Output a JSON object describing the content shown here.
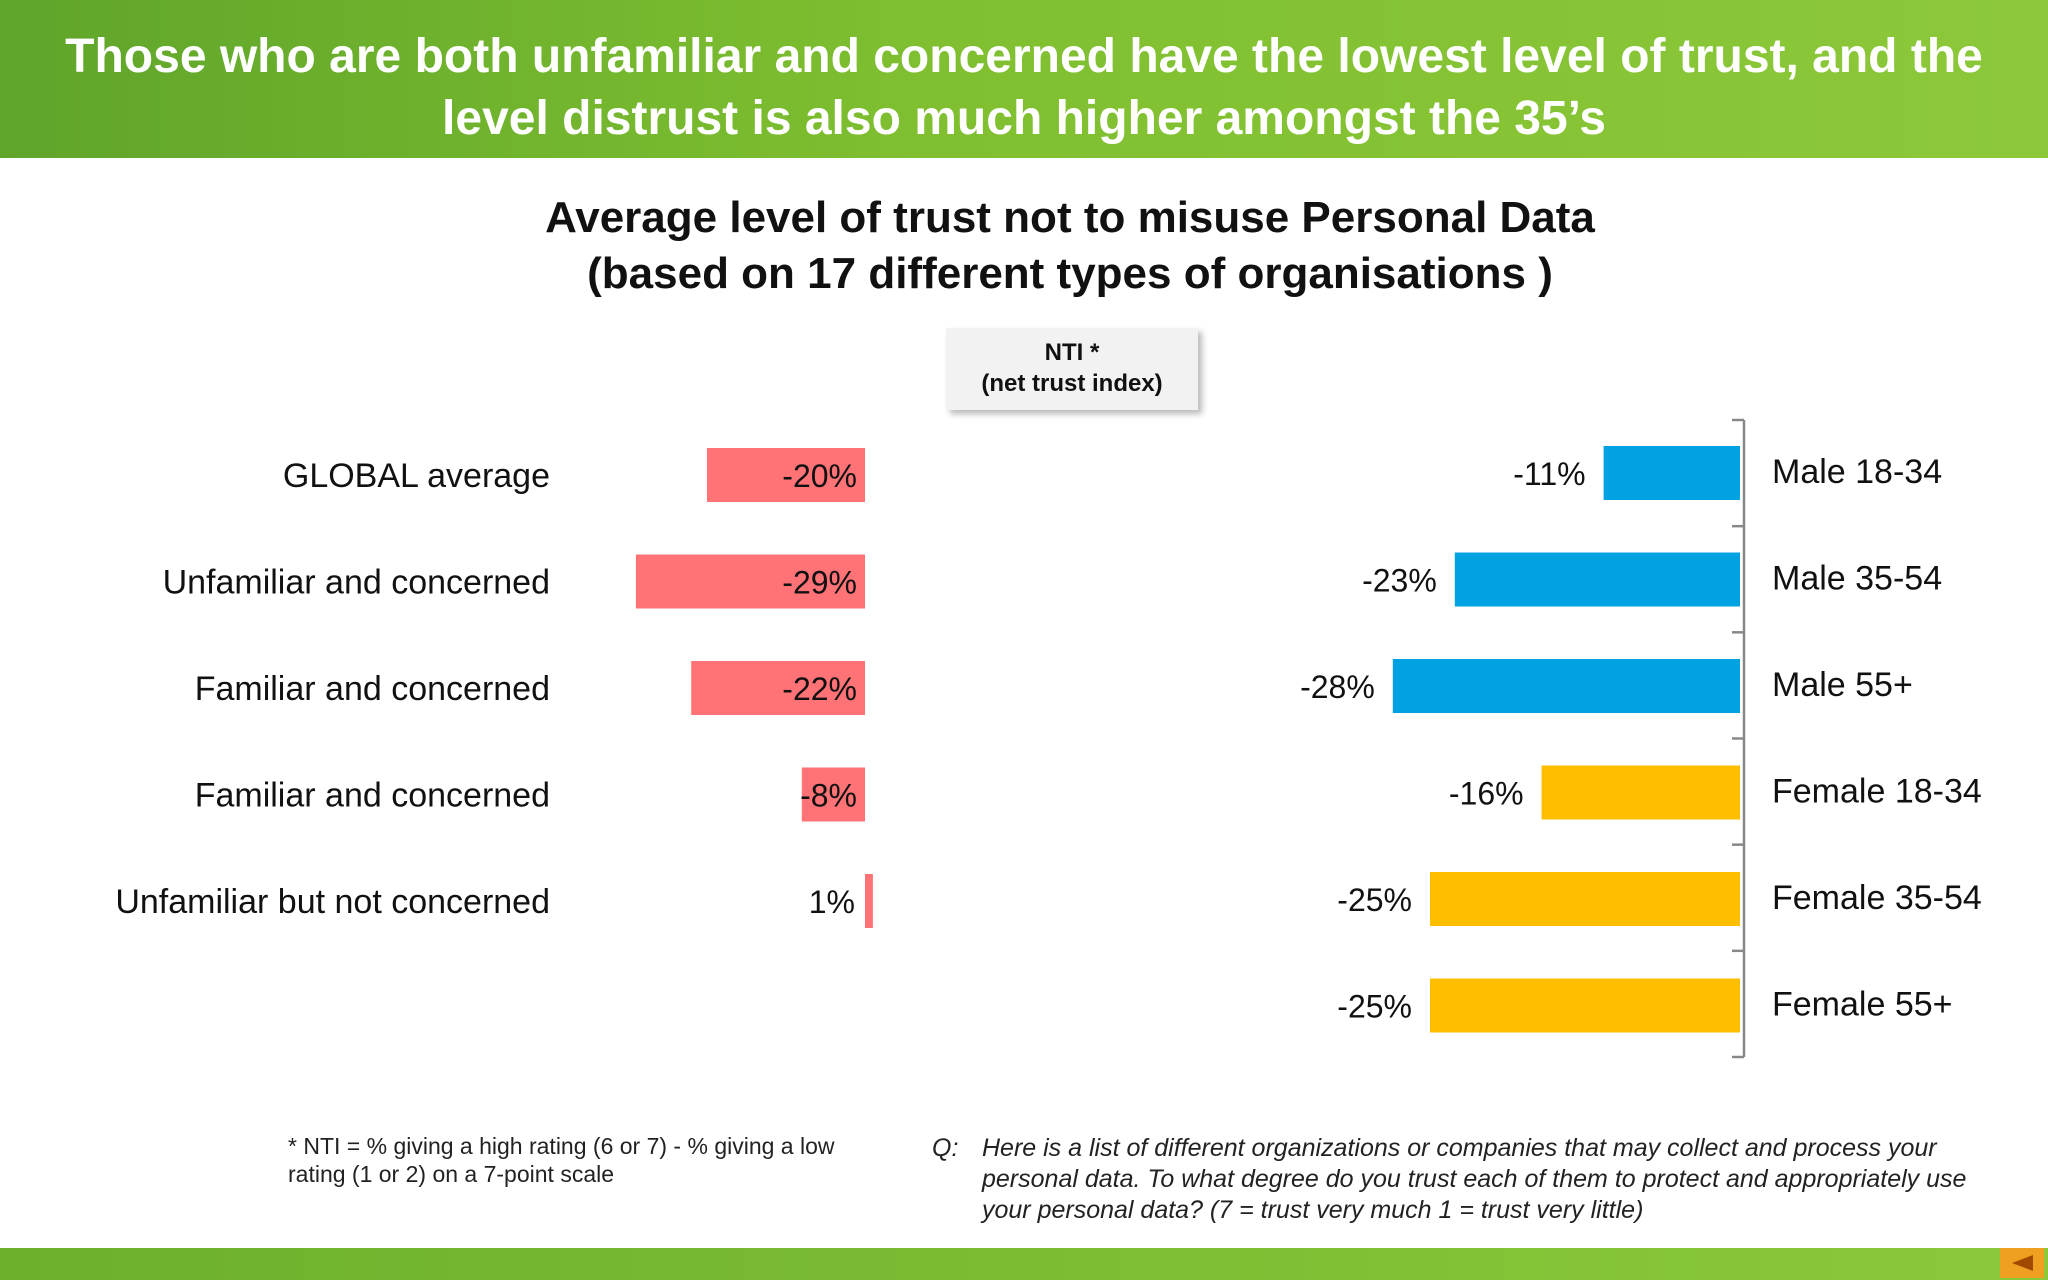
{
  "header": {
    "title": "Those who are both unfamiliar and concerned have the lowest level of trust, and the level distrust is also much higher amongst the 35’s"
  },
  "chart_title_line1": "Average level of trust not to misuse Personal Data",
  "chart_title_line2": "(based on 17 different types of organisations )",
  "nti_box": {
    "line1": "NTI *",
    "line2": "(net trust index)"
  },
  "colors": {
    "left_bar": "#ff7276",
    "male_bar": "#00a2e2",
    "female_bar": "#ffbe00",
    "banner": "#7ab82e",
    "nav": "#f0a020"
  },
  "chart_data": [
    {
      "type": "bar",
      "orientation": "horizontal",
      "categories": [
        "GLOBAL average",
        "Unfamiliar and concerned",
        "Familiar and concerned",
        "Familiar and concerned",
        "Unfamiliar but not concerned"
      ],
      "values": [
        -20,
        -29,
        -22,
        -8,
        1
      ],
      "labels": [
        "-20%",
        "-29%",
        "-22%",
        "-8%",
        "1%"
      ],
      "unit": "%"
    },
    {
      "type": "bar",
      "orientation": "horizontal",
      "categories": [
        "Male 18-34",
        "Male 35-54",
        "Male 55+",
        "Female 18-34",
        "Female 35-54",
        "Female 55+"
      ],
      "values": [
        -11,
        -23,
        -28,
        -16,
        -25,
        -25
      ],
      "labels": [
        "-11%",
        "-23%",
        "-28%",
        "-16%",
        "-25%",
        "-25%"
      ],
      "groups": [
        "male",
        "male",
        "male",
        "female",
        "female",
        "female"
      ],
      "unit": "%"
    }
  ],
  "footnote": "* NTI = % giving a high rating (6 or 7) - % giving a low rating (1 or 2) on a 7-point scale",
  "question": {
    "label": "Q:",
    "text": "Here is a list of different organizations or companies that may collect and process your personal data.  To what degree do you trust each of them to protect and appropriately use your personal data? (7 = trust very much 1 = trust very little)"
  },
  "nav": {
    "icon": "back-arrow-icon"
  }
}
